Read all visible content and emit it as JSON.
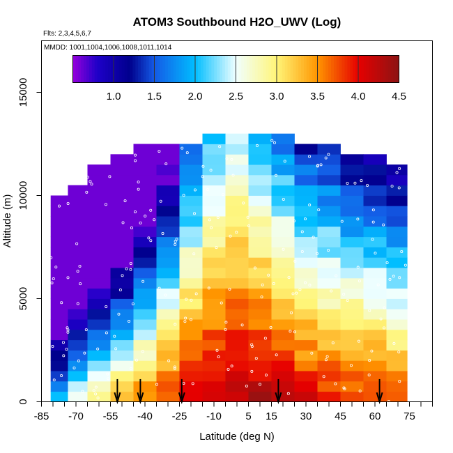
{
  "chart_data": {
    "type": "heatmap",
    "title": "ATOM3 Southbound H2O_UWV (Log)",
    "flights_label": "Flts: 2,3,4,5,6,7",
    "dates_label": "MMDD: 1001,1004,1006,1008,1011,1014",
    "xlabel": "Latitude (deg N)",
    "ylabel": "Altitude (m)",
    "xlim": [
      -85,
      85
    ],
    "ylim": [
      0,
      17500
    ],
    "x_ticks": [
      -85,
      -70,
      -55,
      -40,
      -25,
      -10,
      5,
      15,
      30,
      45,
      60,
      75
    ],
    "y_ticks": [
      0,
      5000,
      10000,
      15000
    ],
    "colorbar": {
      "range": [
        0.5,
        4.5
      ],
      "tick_values": [
        1.0,
        1.5,
        2.0,
        2.5,
        3.0,
        3.5,
        4.0,
        4.5
      ],
      "tick_labels": [
        "1.0",
        "1.5",
        "2.0",
        "2.5",
        "3.0",
        "3.5",
        "4.0",
        "4.5"
      ]
    },
    "arrows_latitude": [
      -52,
      -42,
      -24,
      18,
      62
    ],
    "bin_height_m": 500,
    "profile": [
      {
        "lat": -77,
        "top": 10000,
        "surface": 2.2,
        "scale": 0.0005
      },
      {
        "lat": -70,
        "top": 10500,
        "surface": 2.6,
        "scale": 0.00045
      },
      {
        "lat": -60,
        "top": 11500,
        "surface": 2.9,
        "scale": 0.0004
      },
      {
        "lat": -50,
        "top": 12000,
        "surface": 3.3,
        "scale": 0.00038
      },
      {
        "lat": -40,
        "top": 12500,
        "surface": 3.6,
        "scale": 0.00034
      },
      {
        "lat": -30,
        "top": 12500,
        "surface": 3.9,
        "scale": 0.0003
      },
      {
        "lat": -20,
        "top": 12500,
        "surface": 4.15,
        "scale": 0.00022
      },
      {
        "lat": -10,
        "top": 13000,
        "surface": 4.3,
        "scale": 0.00018
      },
      {
        "lat": 0,
        "top": 13000,
        "surface": 4.35,
        "scale": 0.00016
      },
      {
        "lat": 10,
        "top": 13000,
        "surface": 4.3,
        "scale": 0.00018
      },
      {
        "lat": 20,
        "top": 13000,
        "surface": 4.2,
        "scale": 0.0002
      },
      {
        "lat": 30,
        "top": 12500,
        "surface": 4.05,
        "scale": 0.00022
      },
      {
        "lat": 40,
        "top": 12500,
        "surface": 3.95,
        "scale": 0.00022
      },
      {
        "lat": 50,
        "top": 12000,
        "surface": 3.9,
        "scale": 0.00024
      },
      {
        "lat": 60,
        "top": 12000,
        "surface": 3.9,
        "scale": 0.00025
      },
      {
        "lat": 70,
        "top": 11500,
        "surface": 3.8,
        "scale": 0.00026
      }
    ]
  }
}
